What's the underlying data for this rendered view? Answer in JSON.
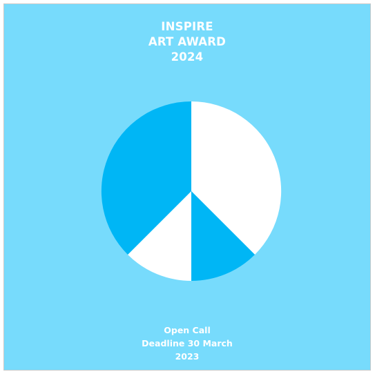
{
  "poster": {
    "title_lines": [
      "INSPIRE",
      "ART AWARD",
      "2024"
    ],
    "footer_lines": [
      "Open Call",
      "Deadline 30 March",
      "2023"
    ]
  },
  "emblem": {
    "icon": "peace-sign-icon"
  },
  "colors": {
    "background": "#77dbfc",
    "accent_blue": "#00b6f5",
    "white": "#ffffff",
    "frame_border": "#c9c9c9"
  }
}
